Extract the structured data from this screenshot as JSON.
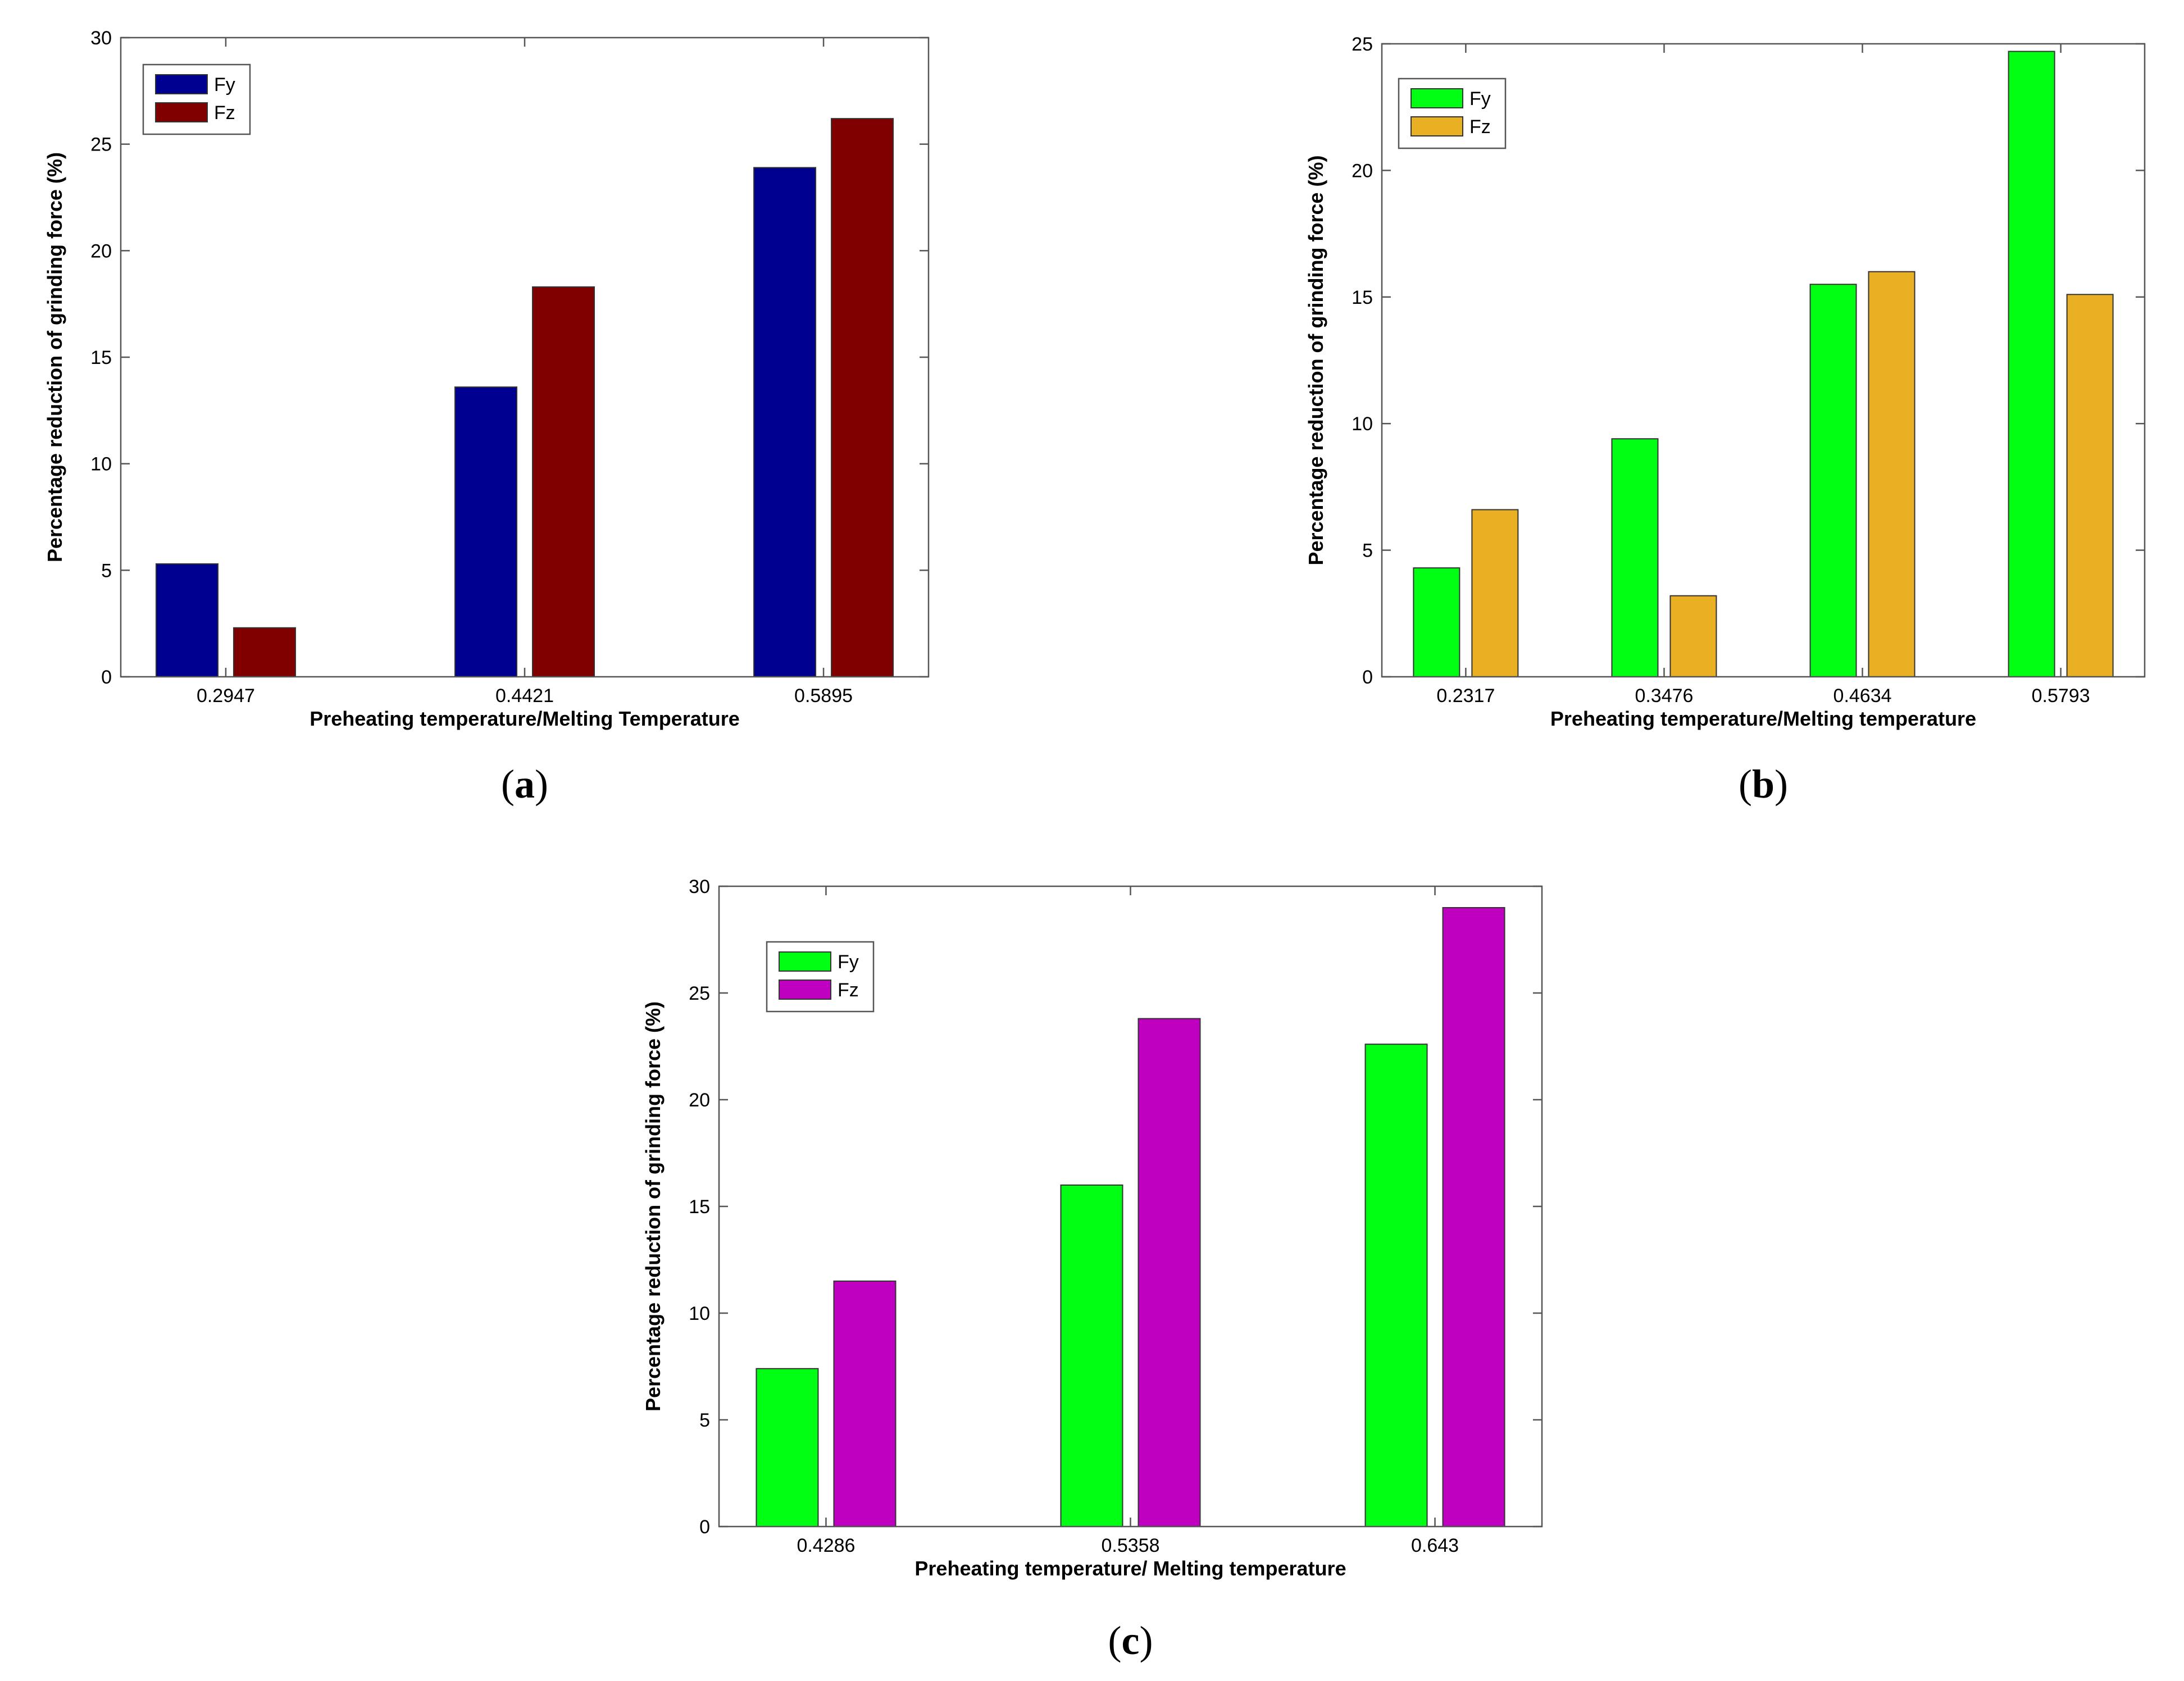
{
  "chart_data": [
    {
      "id": "a",
      "type": "bar",
      "panel_label": "a",
      "categories": [
        "0.2947",
        "0.4421",
        "0.5895"
      ],
      "series": [
        {
          "name": "Fy",
          "color": "#000090",
          "values": [
            5.3,
            13.6,
            23.9
          ]
        },
        {
          "name": "Fz",
          "color": "#800000",
          "values": [
            2.3,
            18.3,
            26.2
          ]
        }
      ],
      "xlabel": "Preheating temperature/Melting Temperature",
      "ylabel": "Percentage reduction of grinding force (%)",
      "ylim": [
        0,
        30
      ],
      "yticks": [
        "0",
        "5",
        "10",
        "15",
        "20",
        "25",
        "30"
      ],
      "legend_position": "top-left",
      "grid": false
    },
    {
      "id": "b",
      "type": "bar",
      "panel_label": "b",
      "categories": [
        "0.2317",
        "0.3476",
        "0.4634",
        "0.5793"
      ],
      "series": [
        {
          "name": "Fy",
          "color": "#00ff12",
          "values": [
            4.3,
            9.4,
            15.5,
            24.7
          ]
        },
        {
          "name": "Fz",
          "color": "#e9b023",
          "values": [
            6.6,
            3.2,
            16.0,
            15.1
          ]
        }
      ],
      "xlabel": "Preheating temperature/Melting temperature",
      "ylabel": "Percentage reduction of grinding force (%)",
      "ylim": [
        0,
        25
      ],
      "yticks": [
        "0",
        "5",
        "10",
        "15",
        "20",
        "25"
      ],
      "legend_position": "top-left",
      "grid": false
    },
    {
      "id": "c",
      "type": "bar",
      "panel_label": "c",
      "categories": [
        "0.4286",
        "0.5358",
        "0.643"
      ],
      "series": [
        {
          "name": "Fy",
          "color": "#00ff12",
          "values": [
            7.4,
            16.0,
            22.6
          ]
        },
        {
          "name": "Fz",
          "color": "#c000c0",
          "values": [
            11.5,
            23.8,
            29.0
          ]
        }
      ],
      "xlabel": "Preheating temperature/ Melting temperature",
      "ylabel": "Percentage reduction of grinding force (%)",
      "ylim": [
        0,
        30
      ],
      "yticks": [
        "0",
        "5",
        "10",
        "15",
        "20",
        "25",
        "30"
      ],
      "legend_position": "top-left",
      "grid": false
    }
  ]
}
